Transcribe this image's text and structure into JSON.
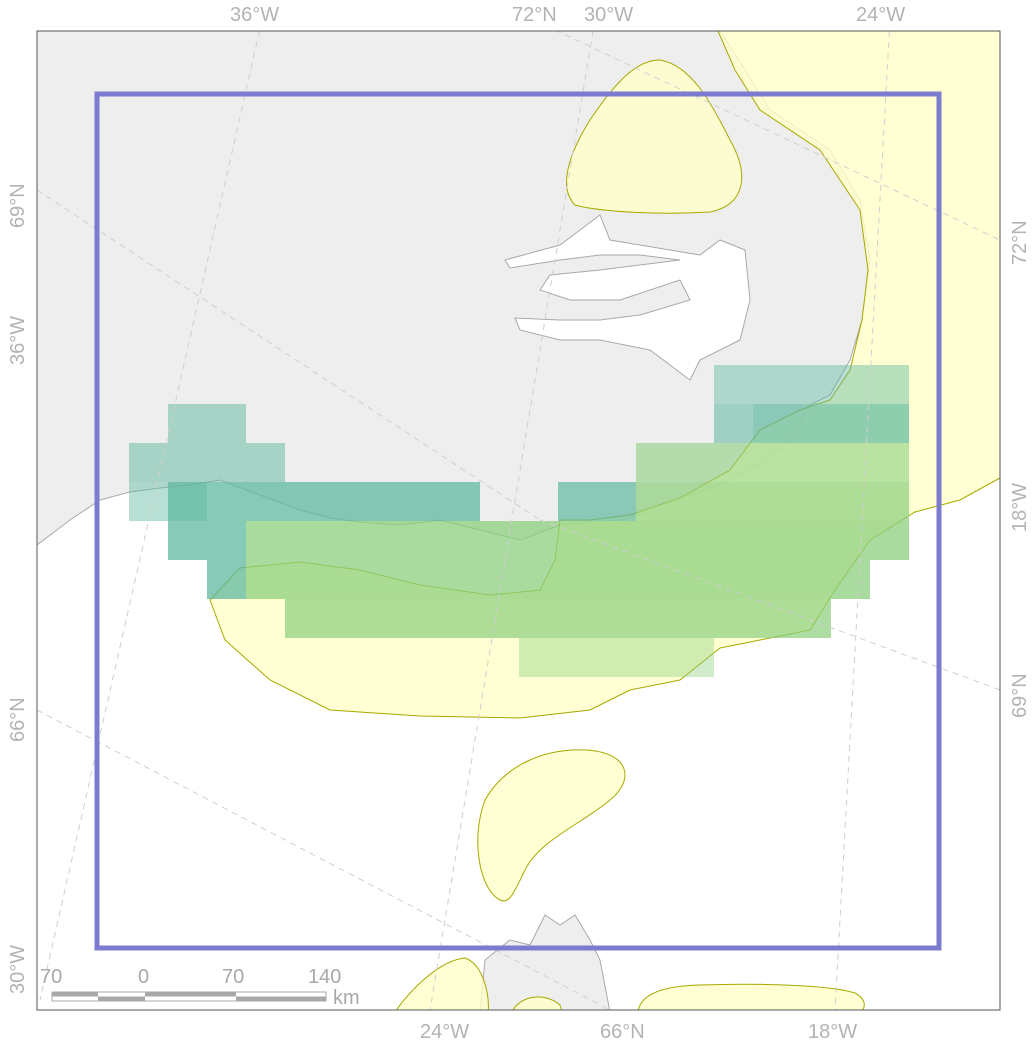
{
  "graticule_labels": {
    "top": [
      "36°W",
      "72°N",
      "30°W",
      "24°W"
    ],
    "bottom": [
      "24°W",
      "66°N",
      "18°W"
    ],
    "left": [
      "69°N",
      "36°W",
      "66°N",
      "30°W"
    ],
    "right": [
      "72°N",
      "18°W",
      "69°N"
    ]
  },
  "scalebar": {
    "ticks": [
      "70",
      "0",
      "70",
      "140"
    ],
    "unit": "km"
  },
  "colors": {
    "land": "#eeeeee",
    "coast": "#a9a9a9",
    "range_fill": "#ffffc8",
    "range_stroke": "#a8a800",
    "grid_teal": "#5fb8a0",
    "grid_green": "#8ccf7e",
    "frame": "#7b7bcf",
    "graticule": "#cfcfcf"
  }
}
